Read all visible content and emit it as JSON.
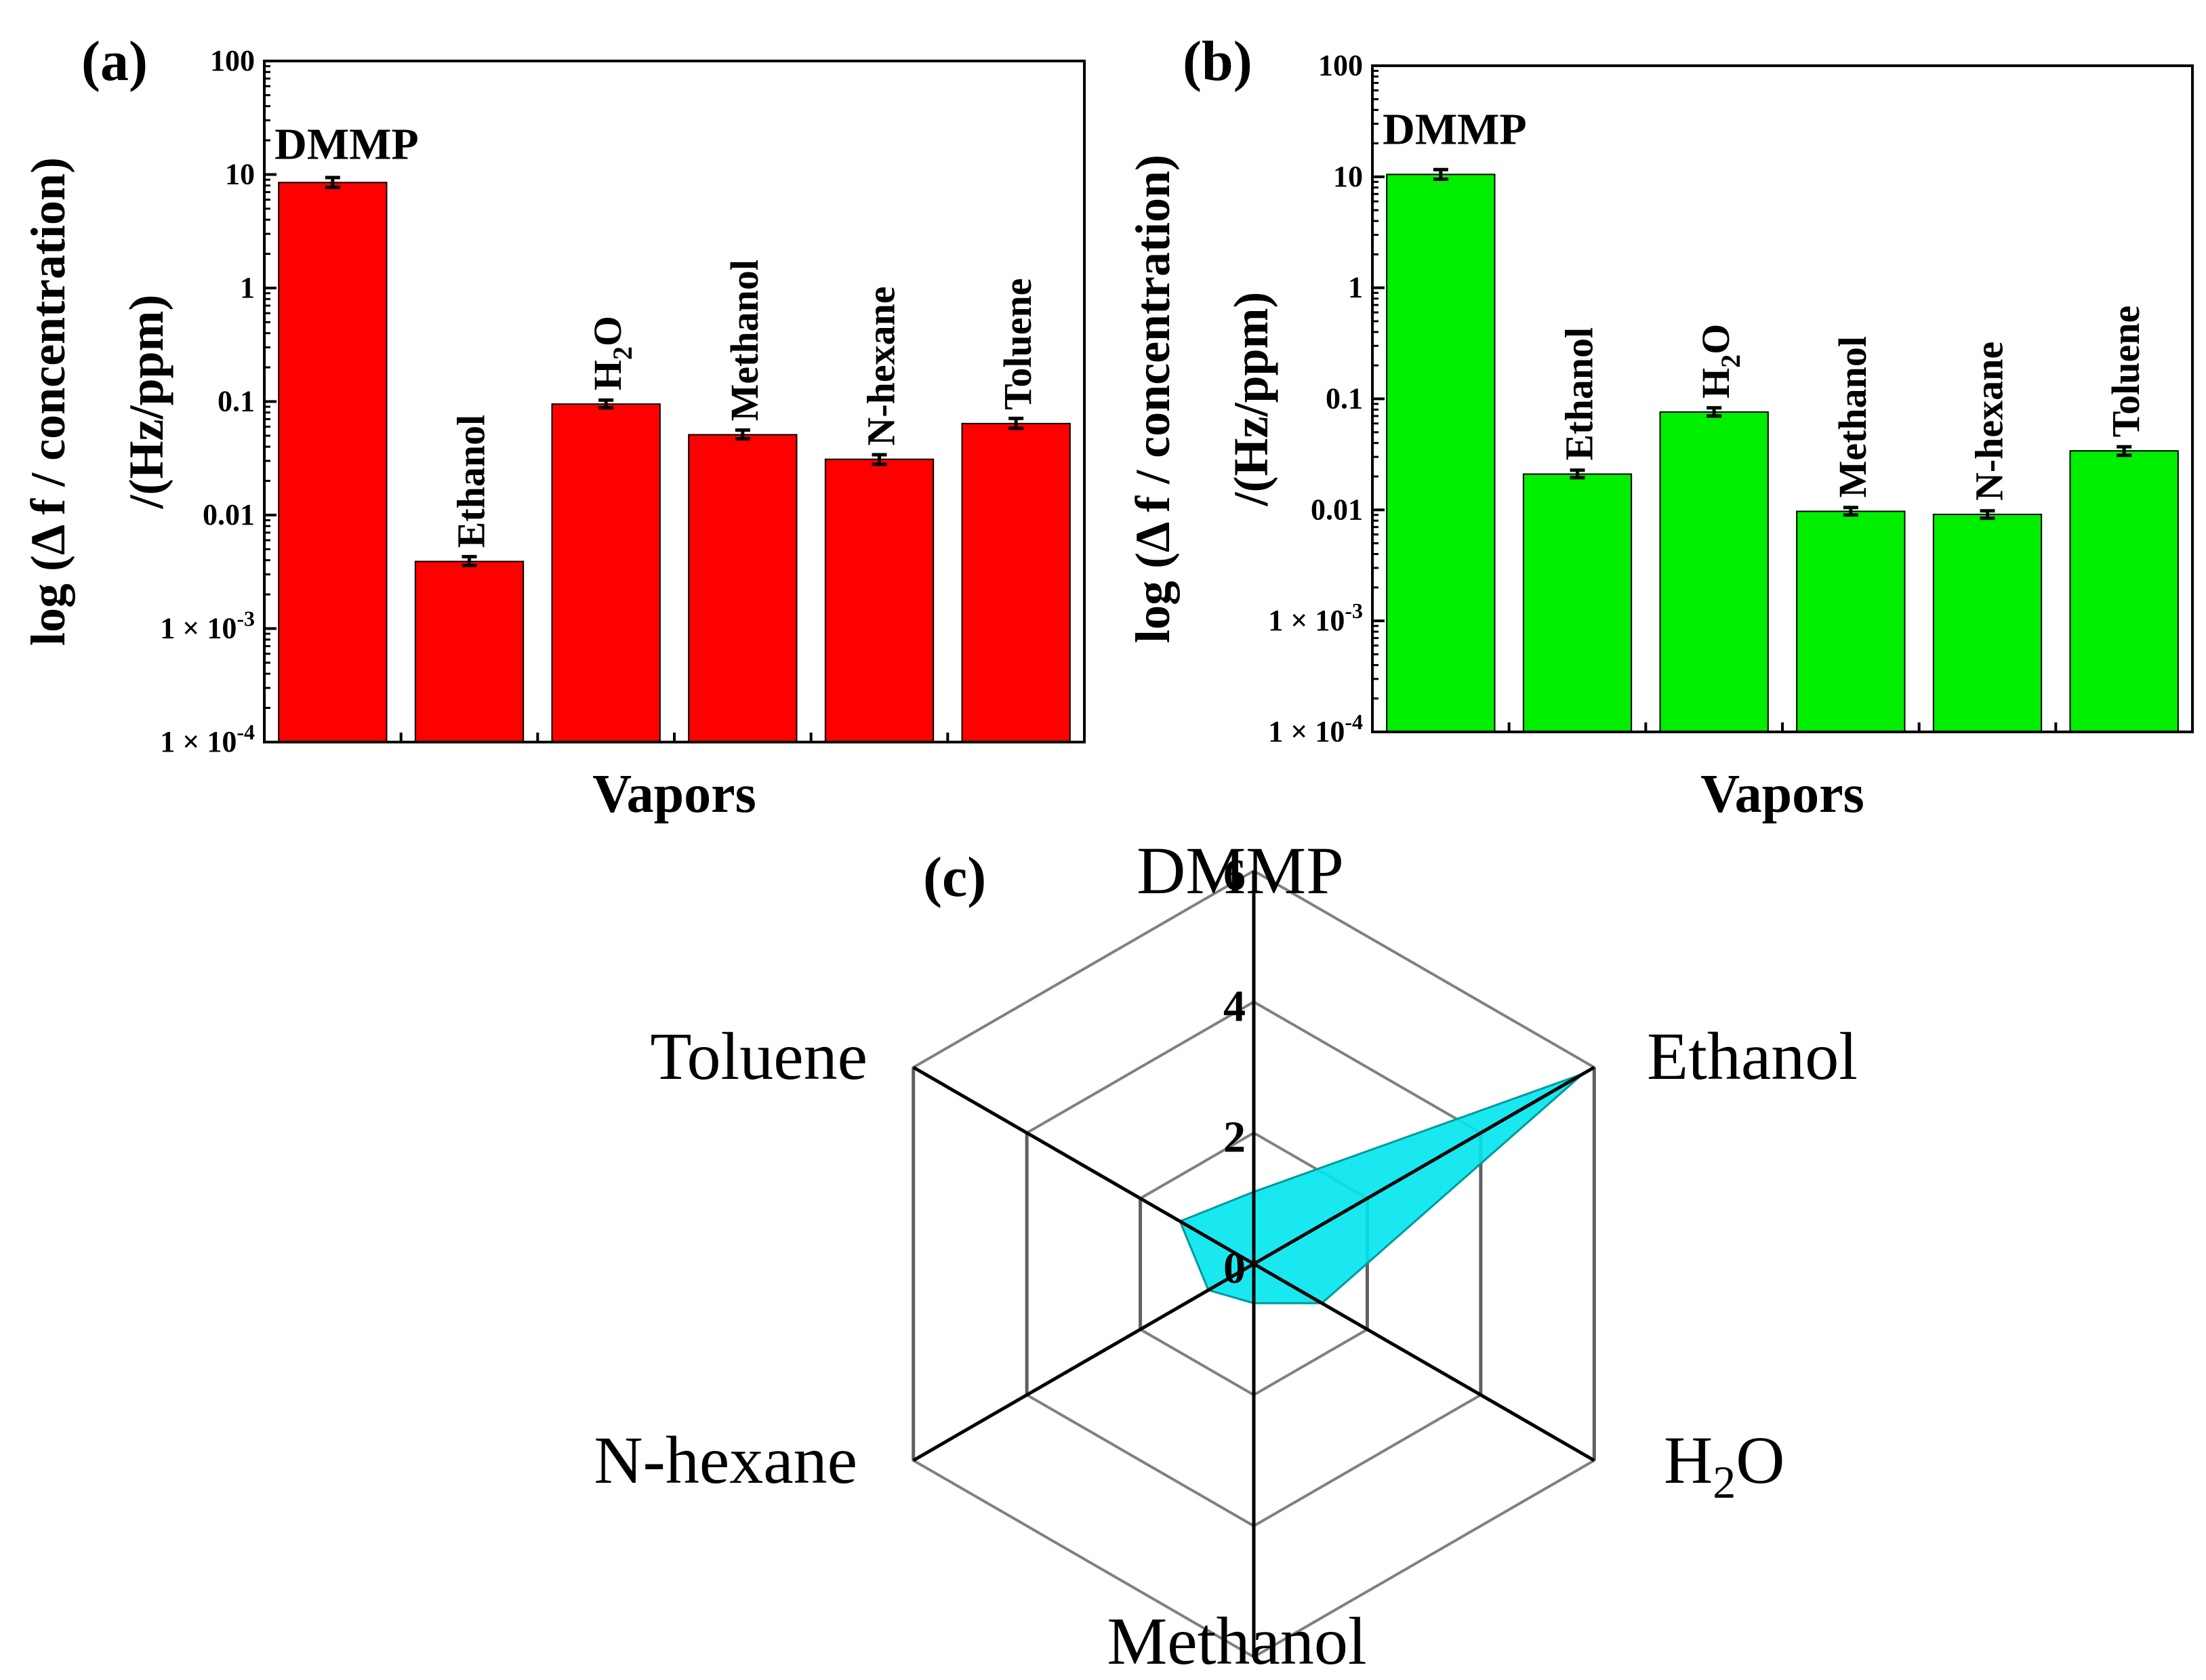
{
  "figure": {
    "panels": [
      "(a)",
      "(b)",
      "(c)"
    ]
  },
  "chart_data": [
    {
      "id": "a",
      "type": "bar",
      "panel_label": "(a)",
      "scale": "log",
      "categories": [
        "DMMP",
        "Ethanol",
        "H2O",
        "Methanol",
        "N-hexane",
        "Toluene"
      ],
      "category_labels": [
        "DMMP",
        "Ethanol",
        "H",
        "Methanol",
        "N-hexane",
        "Toluene"
      ],
      "values": [
        8.5,
        0.0039,
        0.095,
        0.051,
        0.031,
        0.064
      ],
      "errors_low": [
        7.7,
        0.0036,
        0.088,
        0.047,
        0.028,
        0.058
      ],
      "errors_high": [
        9.4,
        0.0043,
        0.103,
        0.056,
        0.034,
        0.071
      ],
      "bar_color": "#ff0000",
      "ylim": [
        0.0001,
        100
      ],
      "yticks": [
        0.0001,
        0.001,
        0.01,
        0.1,
        1,
        10,
        100
      ],
      "ytick_labels": [
        "1 × 10",
        "1 × 10",
        "0.01",
        "0.1",
        "1",
        "10",
        "100"
      ],
      "ytick_exponents": [
        "-4",
        "-3",
        "",
        "",
        "",
        "",
        ""
      ],
      "xlabel": "Vapors",
      "ylabel_line1": "log (Δ f / concentration)",
      "ylabel_line2": "/(Hz/ppm)"
    },
    {
      "id": "b",
      "type": "bar",
      "panel_label": "(b)",
      "scale": "log",
      "categories": [
        "DMMP",
        "Ethanol",
        "H2O",
        "Methanol",
        "N-hexane",
        "Toluene"
      ],
      "category_labels": [
        "DMMP",
        "Ethanol",
        "H",
        "Methanol",
        "N-hexane",
        "Toluene"
      ],
      "values": [
        10.5,
        0.021,
        0.076,
        0.0097,
        0.0091,
        0.034
      ],
      "errors_low": [
        9.5,
        0.0195,
        0.07,
        0.009,
        0.0084,
        0.031
      ],
      "errors_high": [
        11.6,
        0.0228,
        0.083,
        0.0105,
        0.0098,
        0.037
      ],
      "bar_color": "#00ee00",
      "ylim": [
        0.0001,
        100
      ],
      "yticks": [
        0.0001,
        0.001,
        0.01,
        0.1,
        1,
        10,
        100
      ],
      "ytick_labels": [
        "1 × 10",
        "1 × 10",
        "0.01",
        "0.1",
        "1",
        "10",
        "100"
      ],
      "ytick_exponents": [
        "-4",
        "-3",
        "",
        "",
        "",
        "",
        ""
      ],
      "xlabel": "Vapors",
      "ylabel_line1": "log (Δ f / concentration)",
      "ylabel_line2": "/(Hz/ppm)"
    },
    {
      "id": "c",
      "type": "radar",
      "panel_label": "(c)",
      "axes": [
        "DMMP",
        "Ethanol",
        "H2O",
        "Methanol",
        "N-hexane",
        "Toluene"
      ],
      "axis_labels": [
        "DMMP",
        "Ethanol",
        "H",
        "Methanol",
        "N-hexane",
        "Toluene"
      ],
      "values": [
        1.1,
        5.8,
        1.2,
        0.6,
        0.8,
        1.3
      ],
      "rlim": [
        0,
        6
      ],
      "rticks": [
        0,
        2,
        4,
        6
      ],
      "rtick_labels": [
        "0",
        "2",
        "4",
        "6"
      ],
      "fill_color": "#00e5ee"
    }
  ],
  "subscripts": {
    "water": "2"
  },
  "colors": {
    "frame": "#000000",
    "grid": "#808080",
    "fill_edge": "#009999"
  }
}
